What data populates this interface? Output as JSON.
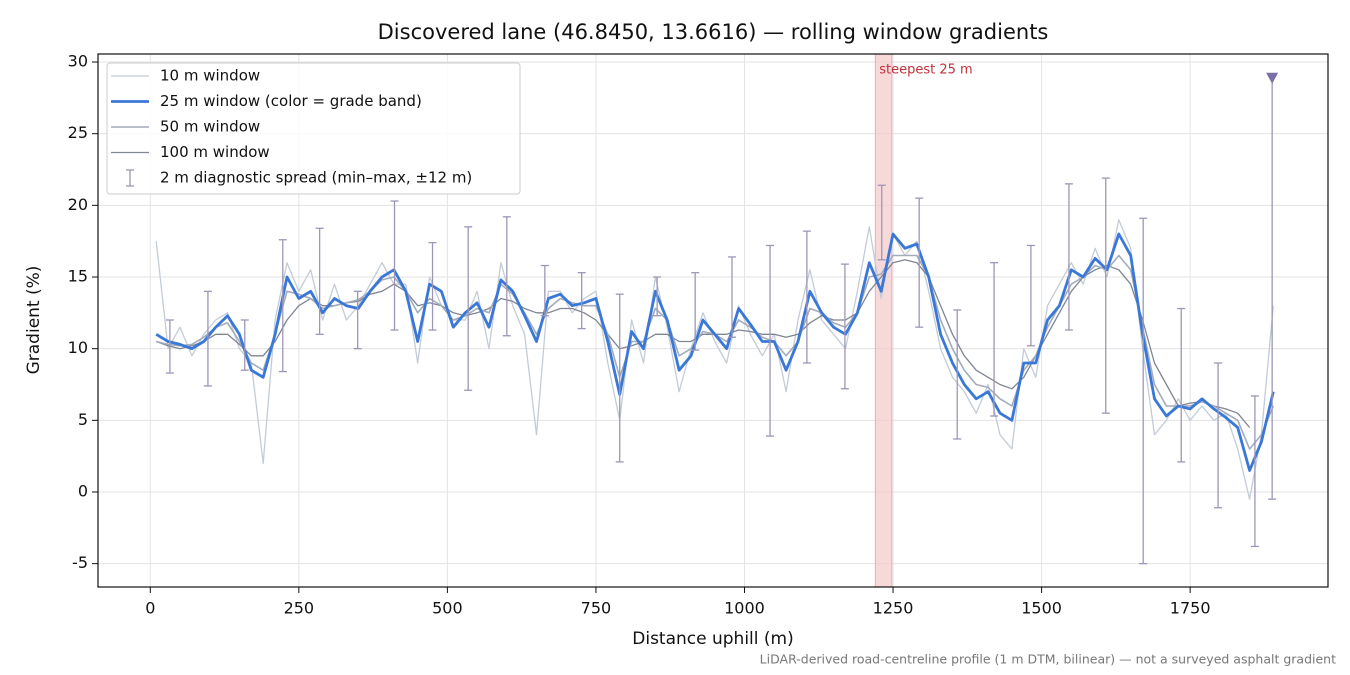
{
  "chart_data": {
    "type": "line",
    "title": "Discovered lane (46.8450, 13.6616) — rolling window gradients",
    "xlabel": "Distance uphill (m)",
    "ylabel": "Gradient (%)",
    "footnote": "LiDAR-derived road-centreline profile (1 m DTM, bilinear) — not a surveyed asphalt gradient",
    "xlim": [
      -88,
      1982
    ],
    "ylim": [
      -6.63,
      30.56
    ],
    "xticks": [
      0,
      250,
      500,
      750,
      1000,
      1250,
      1500,
      1750
    ],
    "yticks": [
      -5,
      0,
      5,
      10,
      15,
      20,
      25,
      30
    ],
    "grid": true,
    "legend": "upper left",
    "x": [
      10,
      30,
      50,
      70,
      90,
      110,
      130,
      150,
      170,
      190,
      210,
      230,
      250,
      270,
      290,
      310,
      330,
      350,
      370,
      390,
      410,
      430,
      450,
      470,
      490,
      510,
      530,
      550,
      570,
      590,
      610,
      630,
      650,
      670,
      690,
      710,
      730,
      750,
      770,
      790,
      810,
      830,
      850,
      870,
      890,
      910,
      930,
      950,
      970,
      990,
      1010,
      1030,
      1050,
      1070,
      1090,
      1110,
      1130,
      1150,
      1170,
      1190,
      1210,
      1230,
      1250,
      1270,
      1290,
      1310,
      1330,
      1350,
      1370,
      1390,
      1410,
      1430,
      1450,
      1470,
      1490,
      1510,
      1530,
      1550,
      1570,
      1590,
      1610,
      1630,
      1650,
      1670,
      1690,
      1710,
      1730,
      1750,
      1770,
      1790,
      1810,
      1830,
      1850,
      1870,
      1890
    ],
    "series": [
      {
        "name": "10 m window",
        "color": "#c3ccd6",
        "values": [
          17.5,
          10,
          11.5,
          9.5,
          11,
          12,
          12.5,
          10,
          9,
          2,
          12,
          16,
          14,
          15.5,
          12,
          14.5,
          12,
          13,
          14.5,
          16,
          14.5,
          14.5,
          9,
          15,
          13,
          12,
          12,
          14,
          10,
          16,
          13,
          11,
          4,
          14,
          14,
          12.5,
          13.5,
          14,
          9,
          5,
          12,
          9,
          15,
          11.5,
          7,
          10,
          12.5,
          10.5,
          9,
          13,
          11,
          9.5,
          11,
          7,
          12,
          15.5,
          12,
          11,
          10,
          14,
          18.5,
          13.5,
          18,
          16.5,
          17.5,
          14,
          10,
          8,
          7,
          5.5,
          7.5,
          4,
          3,
          10,
          8,
          13,
          14.5,
          16,
          14.5,
          17,
          15,
          19,
          17,
          10,
          4,
          5,
          6.5,
          5,
          6,
          5,
          5.5,
          3,
          -0.5,
          4,
          13
        ]
      },
      {
        "name": "25 m window (color = grade band)",
        "color": "#3a78d8",
        "values": [
          11,
          10.5,
          10.3,
          10,
          10.5,
          11.5,
          12.3,
          11,
          8.5,
          8,
          11,
          15,
          13.5,
          14,
          12.5,
          13.5,
          13,
          12.8,
          14,
          15,
          15.5,
          14,
          10.5,
          14.5,
          14,
          11.5,
          12.5,
          13.2,
          11.5,
          14.8,
          14,
          12.3,
          10.5,
          13.5,
          13.8,
          13,
          13.2,
          13.5,
          10.5,
          6.8,
          11.2,
          10,
          14,
          12,
          8.5,
          9.5,
          12,
          11,
          10,
          12.8,
          11.7,
          10.5,
          10.5,
          8.5,
          10.5,
          14,
          12.5,
          11.5,
          11,
          12.5,
          16,
          14,
          18,
          17,
          17.3,
          15,
          11,
          9,
          7.5,
          6.5,
          7,
          5.5,
          5,
          9,
          9,
          12,
          13,
          15.5,
          15,
          16.3,
          15.5,
          18,
          16.5,
          11,
          6.5,
          5.3,
          6,
          5.8,
          6.5,
          5.8,
          5.2,
          4.5,
          1.5,
          3.5,
          7
        ]
      },
      {
        "name": "50 m window",
        "color": "#a2acba",
        "values": [
          10.5,
          10.3,
          10.2,
          10.3,
          10.8,
          11.5,
          11.8,
          10.5,
          9,
          8.5,
          11,
          14,
          13.8,
          13.5,
          12.8,
          13,
          13.2,
          13.4,
          14,
          14.8,
          15,
          14,
          12.5,
          13.5,
          13,
          12,
          12.3,
          12.8,
          12.5,
          14.5,
          13.8,
          12.5,
          11,
          12.8,
          13.5,
          13.2,
          13,
          13,
          11,
          8,
          10.5,
          10.5,
          12.8,
          12,
          9.5,
          10,
          11.2,
          11,
          10.5,
          12,
          11.5,
          10.8,
          10.5,
          9.5,
          10.5,
          12.8,
          12.5,
          11.8,
          11.5,
          12.5,
          15,
          15.2,
          16.5,
          16.5,
          16.5,
          15,
          12,
          10,
          8.5,
          7.5,
          7.3,
          6.5,
          6,
          8.5,
          9.5,
          11.5,
          13,
          14.5,
          15,
          15.8,
          15.5,
          16.5,
          15.5,
          11.5,
          7.5,
          6,
          6,
          6,
          6.3,
          6,
          5.5,
          5,
          3,
          4,
          6
        ]
      },
      {
        "name": "100 m window",
        "color": "#7f8592",
        "values": [
          10.5,
          10.2,
          10,
          10.2,
          10.5,
          11,
          11,
          10.3,
          9.5,
          9.5,
          10.5,
          12,
          13,
          13.5,
          13,
          13,
          13.2,
          13.3,
          13.8,
          14,
          14.5,
          14,
          13,
          13.2,
          13,
          12.5,
          12.3,
          12.5,
          12.8,
          13.5,
          13.3,
          12.8,
          12.5,
          12.5,
          12.8,
          12.8,
          12.5,
          12,
          11,
          10,
          10.2,
          10.5,
          11,
          11,
          10.5,
          10.5,
          11,
          11,
          11,
          11.3,
          11.2,
          11,
          11,
          10.8,
          11,
          11.8,
          12.3,
          12,
          12,
          12.5,
          14,
          15,
          16,
          16.2,
          16,
          15,
          13,
          11,
          9.5,
          8.5,
          8,
          7.5,
          7.2,
          8,
          9.5,
          11,
          12.5,
          14,
          15,
          15.5,
          15.8,
          15.5,
          14.5,
          12,
          9,
          7.5,
          6,
          6.2,
          6.3,
          6,
          5.8,
          5.5,
          4.5,
          null,
          null
        ]
      }
    ],
    "spread": {
      "name": "2 m diagnostic spread (min–max, ±12 m)",
      "color": "#9d96b8",
      "x": [
        33,
        97,
        159,
        223,
        285,
        349,
        411,
        475,
        535,
        600,
        664,
        726,
        790,
        853,
        917,
        979,
        1043,
        1105,
        1169,
        1231,
        1294,
        1358,
        1420,
        1482,
        1546,
        1608,
        1671,
        1735,
        1797,
        1859,
        1888
      ],
      "low": [
        8.3,
        7.4,
        8.5,
        8.4,
        11,
        10,
        11.3,
        11.3,
        7.1,
        10.9,
        12.3,
        11.4,
        2.1,
        12.3,
        9.9,
        10.8,
        3.9,
        9,
        7.2,
        16.2,
        11.5,
        3.7,
        5.3,
        10.2,
        11.3,
        5.5,
        -5,
        2.1,
        -1.1,
        -3.8,
        -0.5
      ],
      "high": [
        12,
        14,
        12,
        17.6,
        18.4,
        14,
        20.3,
        17.4,
        18.5,
        19.2,
        15.8,
        15.3,
        13.8,
        15,
        15.3,
        16.4,
        17.2,
        18.2,
        15.9,
        21.4,
        20.5,
        12.7,
        16,
        17.2,
        21.5,
        21.9,
        19.1,
        12.8,
        9,
        6.7,
        29
      ]
    },
    "marker": {
      "x": 1888,
      "y": 28.9,
      "color": "#7b6fa8"
    },
    "highlight": {
      "label": "steepest 25 m",
      "xlim": [
        1220,
        1248
      ],
      "color": "#f5c9cb",
      "label_color": "#c0303a"
    }
  }
}
